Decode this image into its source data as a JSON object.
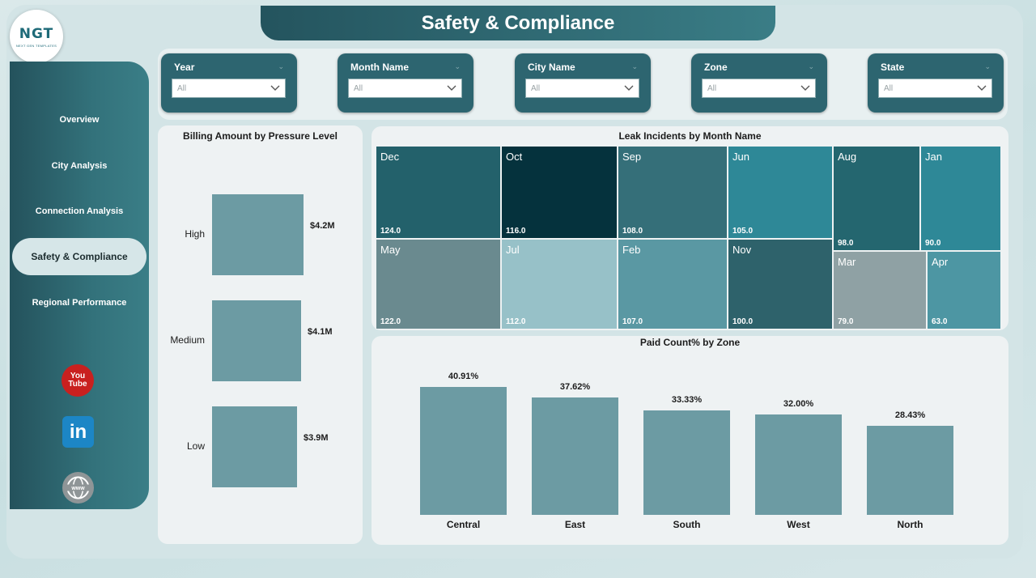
{
  "logo": {
    "text": "NGT",
    "subtitle": "NEXT GEN TEMPLATES"
  },
  "title": "Safety & Compliance",
  "sidebar": {
    "items": [
      {
        "label": "Overview",
        "active": false
      },
      {
        "label": "City Analysis",
        "active": false
      },
      {
        "label": "Connection Analysis",
        "active": false
      },
      {
        "label": "Safety & Compliance",
        "active": true
      },
      {
        "label": "Regional Performance",
        "active": false
      }
    ],
    "social": {
      "youtube_text": "You Tube",
      "linkedin_text": "in",
      "web_text": "www"
    }
  },
  "filters": [
    {
      "label": "Year",
      "value": "All"
    },
    {
      "label": "Month Name",
      "value": "All"
    },
    {
      "label": "City Name",
      "value": "All"
    },
    {
      "label": "Zone",
      "value": "All"
    },
    {
      "label": "State",
      "value": "All"
    }
  ],
  "colors": {
    "accent": "#2d6570",
    "bar": "#6c9ba3",
    "panel": "#eef2f3"
  },
  "billing_chart": {
    "title": "Billing Amount by Pressure Level",
    "chart_data": {
      "type": "bar",
      "orientation": "horizontal",
      "categories": [
        "High",
        "Medium",
        "Low"
      ],
      "values": [
        4.2,
        4.1,
        3.9
      ],
      "data_labels": [
        "$4.2M",
        "$4.1M",
        "$3.9M"
      ],
      "unit": "$M"
    }
  },
  "leak_chart": {
    "title": "Leak Incidents by Month Name",
    "chart_data": {
      "type": "treemap",
      "categories": [
        "Dec",
        "Oct",
        "Sep",
        "Jun",
        "Aug",
        "Jan",
        "May",
        "Jul",
        "Feb",
        "Nov",
        "Mar",
        "Apr"
      ],
      "values": [
        124.0,
        116.0,
        108.0,
        105.0,
        98.0,
        90.0,
        122.0,
        112.0,
        107.0,
        100.0,
        79.0,
        63.0
      ],
      "data_labels": [
        "124.0",
        "116.0",
        "108.0",
        "105.0",
        "98.0",
        "90.0",
        "122.0",
        "112.0",
        "107.0",
        "100.0",
        "79.0",
        "63.0"
      ],
      "colors": [
        "#23616b",
        "#05323d",
        "#356f79",
        "#2e8897",
        "#24666f",
        "#2e8897",
        "#6a8a8f",
        "#97c1c8",
        "#5a98a3",
        "#2e626b",
        "#8fa1a4",
        "#4d96a3"
      ]
    }
  },
  "paid_chart": {
    "title": "Paid Count% by Zone",
    "chart_data": {
      "type": "bar",
      "categories": [
        "Central",
        "East",
        "South",
        "West",
        "North"
      ],
      "values": [
        40.91,
        37.62,
        33.33,
        32.0,
        28.43
      ],
      "data_labels": [
        "40.91%",
        "37.62%",
        "33.33%",
        "32.00%",
        "28.43%"
      ],
      "unit": "%"
    }
  }
}
